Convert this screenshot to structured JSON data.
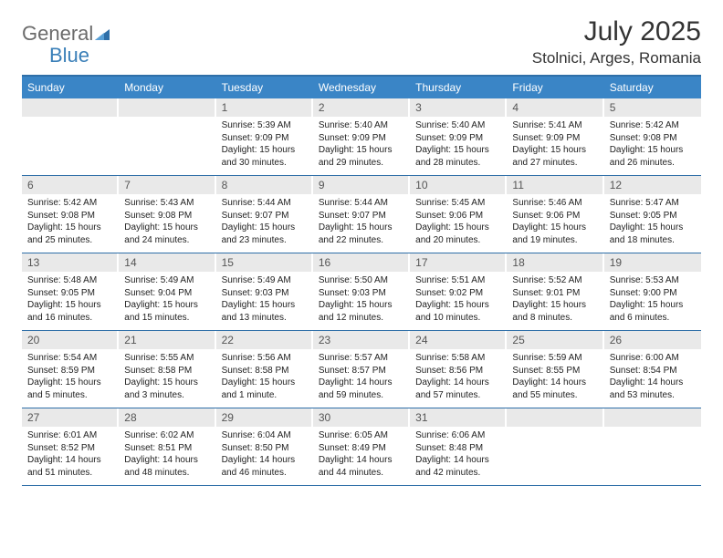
{
  "brand": {
    "text_general": "General",
    "text_blue": "Blue",
    "general_color": "#6b6b6b",
    "blue_color": "#3a7fb8",
    "icon_fill": "#2f6fa8"
  },
  "header": {
    "month_title": "July 2025",
    "location": "Stolnici, Arges, Romania",
    "title_color": "#333333",
    "title_fontsize": 30,
    "location_fontsize": 17
  },
  "colors": {
    "header_bar": "#3a85c6",
    "header_bar_text": "#ffffff",
    "daynum_bg": "#e9e9e9",
    "daynum_text": "#555555",
    "rule": "#2f6fa8",
    "body_text": "#222222",
    "background": "#ffffff"
  },
  "weekdays": [
    "Sunday",
    "Monday",
    "Tuesday",
    "Wednesday",
    "Thursday",
    "Friday",
    "Saturday"
  ],
  "weeks": [
    [
      null,
      null,
      {
        "n": "1",
        "sunrise": "Sunrise: 5:39 AM",
        "sunset": "Sunset: 9:09 PM",
        "daylight": "Daylight: 15 hours and 30 minutes."
      },
      {
        "n": "2",
        "sunrise": "Sunrise: 5:40 AM",
        "sunset": "Sunset: 9:09 PM",
        "daylight": "Daylight: 15 hours and 29 minutes."
      },
      {
        "n": "3",
        "sunrise": "Sunrise: 5:40 AM",
        "sunset": "Sunset: 9:09 PM",
        "daylight": "Daylight: 15 hours and 28 minutes."
      },
      {
        "n": "4",
        "sunrise": "Sunrise: 5:41 AM",
        "sunset": "Sunset: 9:09 PM",
        "daylight": "Daylight: 15 hours and 27 minutes."
      },
      {
        "n": "5",
        "sunrise": "Sunrise: 5:42 AM",
        "sunset": "Sunset: 9:08 PM",
        "daylight": "Daylight: 15 hours and 26 minutes."
      }
    ],
    [
      {
        "n": "6",
        "sunrise": "Sunrise: 5:42 AM",
        "sunset": "Sunset: 9:08 PM",
        "daylight": "Daylight: 15 hours and 25 minutes."
      },
      {
        "n": "7",
        "sunrise": "Sunrise: 5:43 AM",
        "sunset": "Sunset: 9:08 PM",
        "daylight": "Daylight: 15 hours and 24 minutes."
      },
      {
        "n": "8",
        "sunrise": "Sunrise: 5:44 AM",
        "sunset": "Sunset: 9:07 PM",
        "daylight": "Daylight: 15 hours and 23 minutes."
      },
      {
        "n": "9",
        "sunrise": "Sunrise: 5:44 AM",
        "sunset": "Sunset: 9:07 PM",
        "daylight": "Daylight: 15 hours and 22 minutes."
      },
      {
        "n": "10",
        "sunrise": "Sunrise: 5:45 AM",
        "sunset": "Sunset: 9:06 PM",
        "daylight": "Daylight: 15 hours and 20 minutes."
      },
      {
        "n": "11",
        "sunrise": "Sunrise: 5:46 AM",
        "sunset": "Sunset: 9:06 PM",
        "daylight": "Daylight: 15 hours and 19 minutes."
      },
      {
        "n": "12",
        "sunrise": "Sunrise: 5:47 AM",
        "sunset": "Sunset: 9:05 PM",
        "daylight": "Daylight: 15 hours and 18 minutes."
      }
    ],
    [
      {
        "n": "13",
        "sunrise": "Sunrise: 5:48 AM",
        "sunset": "Sunset: 9:05 PM",
        "daylight": "Daylight: 15 hours and 16 minutes."
      },
      {
        "n": "14",
        "sunrise": "Sunrise: 5:49 AM",
        "sunset": "Sunset: 9:04 PM",
        "daylight": "Daylight: 15 hours and 15 minutes."
      },
      {
        "n": "15",
        "sunrise": "Sunrise: 5:49 AM",
        "sunset": "Sunset: 9:03 PM",
        "daylight": "Daylight: 15 hours and 13 minutes."
      },
      {
        "n": "16",
        "sunrise": "Sunrise: 5:50 AM",
        "sunset": "Sunset: 9:03 PM",
        "daylight": "Daylight: 15 hours and 12 minutes."
      },
      {
        "n": "17",
        "sunrise": "Sunrise: 5:51 AM",
        "sunset": "Sunset: 9:02 PM",
        "daylight": "Daylight: 15 hours and 10 minutes."
      },
      {
        "n": "18",
        "sunrise": "Sunrise: 5:52 AM",
        "sunset": "Sunset: 9:01 PM",
        "daylight": "Daylight: 15 hours and 8 minutes."
      },
      {
        "n": "19",
        "sunrise": "Sunrise: 5:53 AM",
        "sunset": "Sunset: 9:00 PM",
        "daylight": "Daylight: 15 hours and 6 minutes."
      }
    ],
    [
      {
        "n": "20",
        "sunrise": "Sunrise: 5:54 AM",
        "sunset": "Sunset: 8:59 PM",
        "daylight": "Daylight: 15 hours and 5 minutes."
      },
      {
        "n": "21",
        "sunrise": "Sunrise: 5:55 AM",
        "sunset": "Sunset: 8:58 PM",
        "daylight": "Daylight: 15 hours and 3 minutes."
      },
      {
        "n": "22",
        "sunrise": "Sunrise: 5:56 AM",
        "sunset": "Sunset: 8:58 PM",
        "daylight": "Daylight: 15 hours and 1 minute."
      },
      {
        "n": "23",
        "sunrise": "Sunrise: 5:57 AM",
        "sunset": "Sunset: 8:57 PM",
        "daylight": "Daylight: 14 hours and 59 minutes."
      },
      {
        "n": "24",
        "sunrise": "Sunrise: 5:58 AM",
        "sunset": "Sunset: 8:56 PM",
        "daylight": "Daylight: 14 hours and 57 minutes."
      },
      {
        "n": "25",
        "sunrise": "Sunrise: 5:59 AM",
        "sunset": "Sunset: 8:55 PM",
        "daylight": "Daylight: 14 hours and 55 minutes."
      },
      {
        "n": "26",
        "sunrise": "Sunrise: 6:00 AM",
        "sunset": "Sunset: 8:54 PM",
        "daylight": "Daylight: 14 hours and 53 minutes."
      }
    ],
    [
      {
        "n": "27",
        "sunrise": "Sunrise: 6:01 AM",
        "sunset": "Sunset: 8:52 PM",
        "daylight": "Daylight: 14 hours and 51 minutes."
      },
      {
        "n": "28",
        "sunrise": "Sunrise: 6:02 AM",
        "sunset": "Sunset: 8:51 PM",
        "daylight": "Daylight: 14 hours and 48 minutes."
      },
      {
        "n": "29",
        "sunrise": "Sunrise: 6:04 AM",
        "sunset": "Sunset: 8:50 PM",
        "daylight": "Daylight: 14 hours and 46 minutes."
      },
      {
        "n": "30",
        "sunrise": "Sunrise: 6:05 AM",
        "sunset": "Sunset: 8:49 PM",
        "daylight": "Daylight: 14 hours and 44 minutes."
      },
      {
        "n": "31",
        "sunrise": "Sunrise: 6:06 AM",
        "sunset": "Sunset: 8:48 PM",
        "daylight": "Daylight: 14 hours and 42 minutes."
      },
      null,
      null
    ]
  ]
}
